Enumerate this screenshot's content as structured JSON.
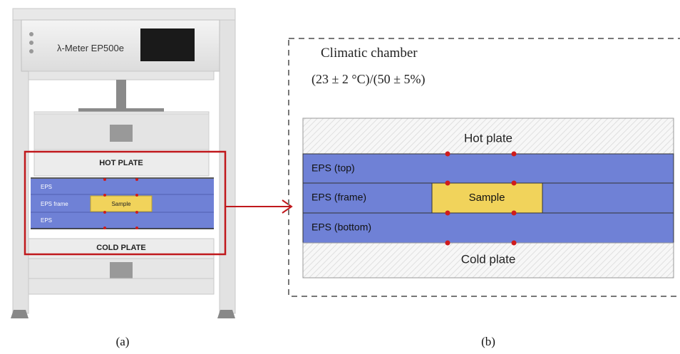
{
  "panel_a": {
    "device_label": "λ-Meter EP500e",
    "hot_plate": "HOT PLATE",
    "eps_top": "EPS",
    "eps_frame": "EPS frame",
    "sample": "Sample",
    "eps_bottom": "EPS",
    "cold_plate": "COLD PLATE",
    "caption": "(a)"
  },
  "panel_b": {
    "chamber_title": "Climatic chamber",
    "chamber_conditions": "(23 ± 2 °C)/(50 ± 5%)",
    "hot_plate": "Hot plate",
    "eps_top": "EPS (top)",
    "eps_frame": "EPS (frame)",
    "sample": "Sample",
    "eps_bottom": "EPS (bottom)",
    "cold_plate": "Cold plate",
    "caption": "(b)"
  }
}
